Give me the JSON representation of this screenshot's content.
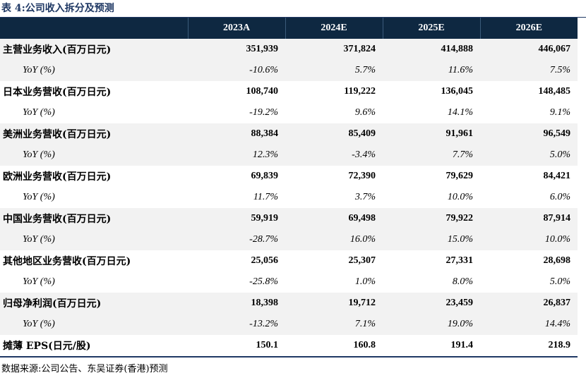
{
  "title": "表 4:公司收入拆分及预测",
  "headers": [
    "",
    "2023A",
    "2024E",
    "2025E",
    "2026E"
  ],
  "rows": [
    {
      "type": "main",
      "shade": true,
      "cells": [
        "主营业务收入(百万日元)",
        "351,939",
        "371,824",
        "414,888",
        "446,067"
      ]
    },
    {
      "type": "yoy",
      "shade": true,
      "cells": [
        "YoY (%)",
        "-10.6%",
        "5.7%",
        "11.6%",
        "7.5%"
      ]
    },
    {
      "type": "main",
      "shade": false,
      "cells": [
        "日本业务营收(百万日元)",
        "108,740",
        "119,222",
        "136,045",
        "148,485"
      ]
    },
    {
      "type": "yoy",
      "shade": false,
      "cells": [
        "YoY (%)",
        "-19.2%",
        "9.6%",
        "14.1%",
        "9.1%"
      ]
    },
    {
      "type": "main",
      "shade": true,
      "cells": [
        "美洲业务营收(百万日元)",
        "88,384",
        "85,409",
        "91,961",
        "96,549"
      ]
    },
    {
      "type": "yoy",
      "shade": true,
      "cells": [
        "YoY (%)",
        "12.3%",
        "-3.4%",
        "7.7%",
        "5.0%"
      ]
    },
    {
      "type": "main",
      "shade": false,
      "cells": [
        "欧洲业务营收(百万日元)",
        "69,839",
        "72,390",
        "79,629",
        "84,421"
      ]
    },
    {
      "type": "yoy",
      "shade": false,
      "cells": [
        "YoY (%)",
        "11.7%",
        "3.7%",
        "10.0%",
        "6.0%"
      ]
    },
    {
      "type": "main",
      "shade": true,
      "cells": [
        "中国业务营收(百万日元)",
        "59,919",
        "69,498",
        "79,922",
        "87,914"
      ]
    },
    {
      "type": "yoy",
      "shade": true,
      "cells": [
        "YoY (%)",
        "-28.7%",
        "16.0%",
        "15.0%",
        "10.0%"
      ]
    },
    {
      "type": "main",
      "shade": false,
      "cells": [
        "其他地区业务营收(百万日元)",
        "25,056",
        "25,307",
        "27,331",
        "28,698"
      ]
    },
    {
      "type": "yoy",
      "shade": false,
      "cells": [
        "YoY (%)",
        "-25.8%",
        "1.0%",
        "8.0%",
        "5.0%"
      ]
    },
    {
      "type": "main",
      "shade": true,
      "cells": [
        "归母净利润(百万日元)",
        "18,398",
        "19,712",
        "23,459",
        "26,837"
      ]
    },
    {
      "type": "yoy",
      "shade": true,
      "cells": [
        "YoY (%)",
        "-13.2%",
        "7.1%",
        "19.0%",
        "14.4%"
      ]
    },
    {
      "type": "main",
      "shade": false,
      "cells": [
        "摊薄 EPS(日元/股)",
        "150.1",
        "160.8",
        "191.4",
        "218.9"
      ]
    }
  ],
  "source": "数据来源:公司公告、东吴证券(香港)预测",
  "colors": {
    "header_bg": "#0e2841",
    "title": "#1f3864",
    "shade": "#f2f2f2"
  }
}
